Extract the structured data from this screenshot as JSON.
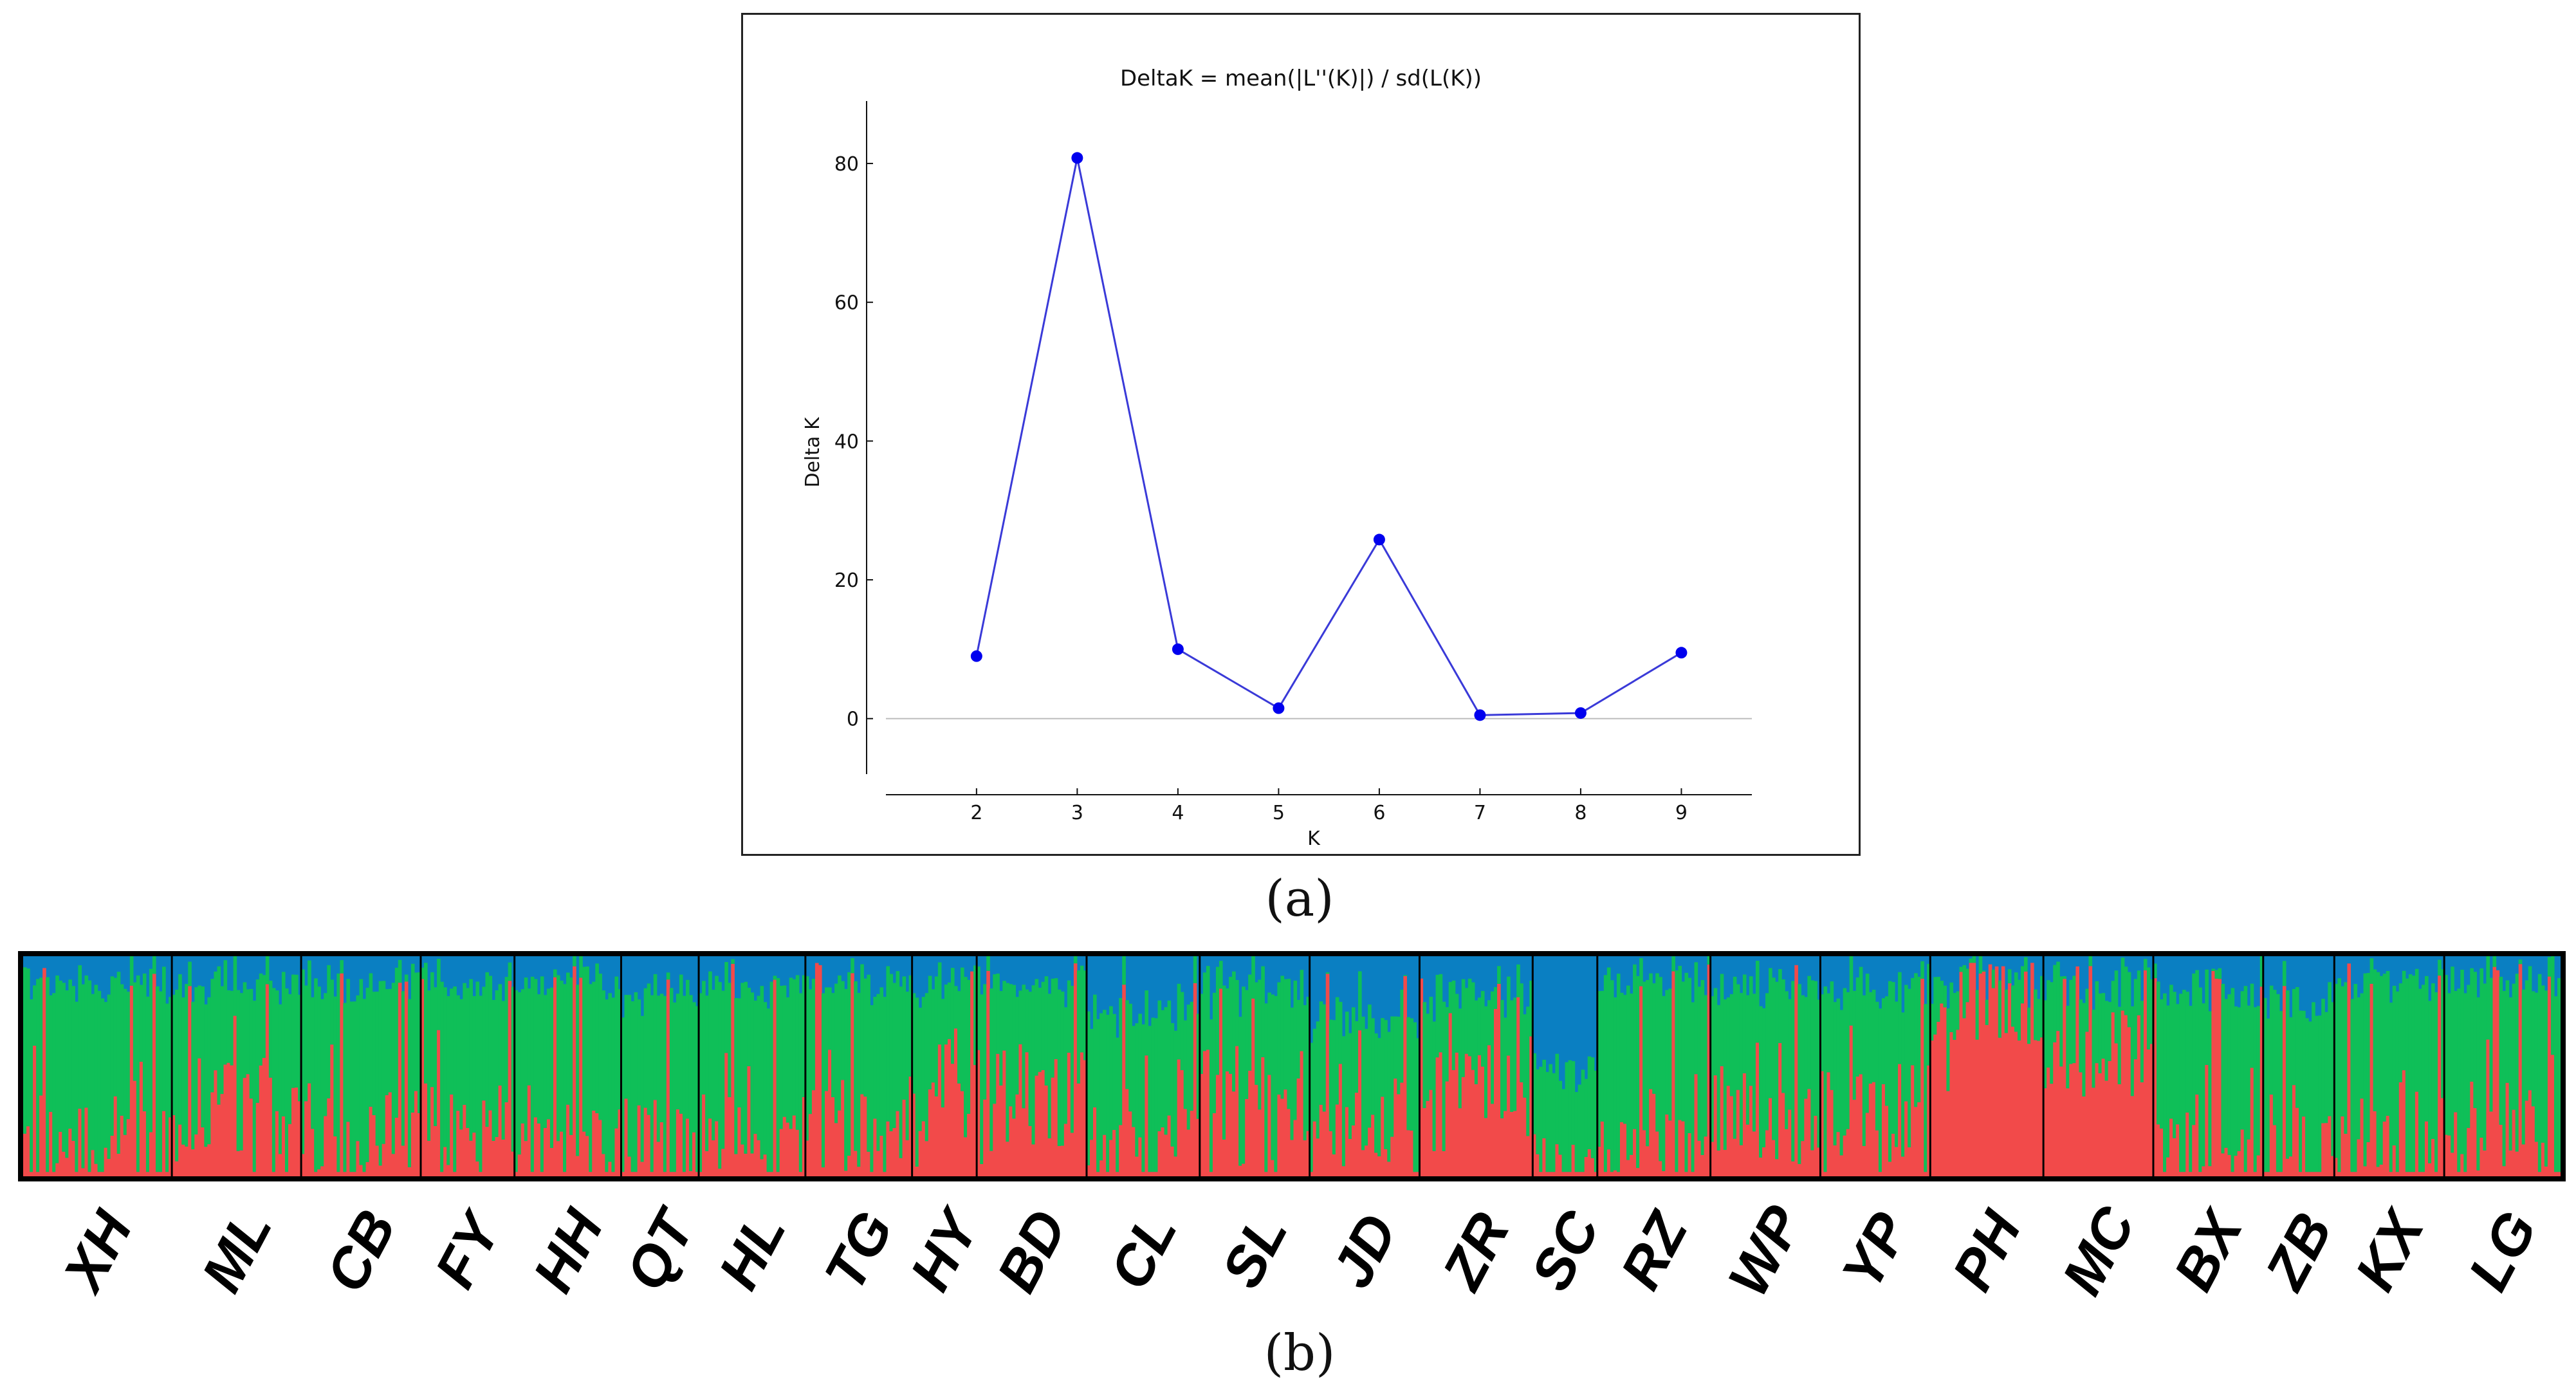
{
  "chart_data": [
    {
      "type": "line",
      "title": "DeltaK = mean(|L''(K)|) / sd(L(K))",
      "xlabel": "K",
      "ylabel": "Delta K",
      "x": [
        2,
        3,
        4,
        5,
        6,
        7,
        8,
        9
      ],
      "values": [
        9,
        80.8,
        10,
        1.5,
        25.8,
        0.5,
        0.8,
        9.5
      ],
      "xlim": [
        1.1,
        9.7
      ],
      "ylim": [
        -8,
        89
      ],
      "xticks": [
        "2",
        "3",
        "4",
        "5",
        "6",
        "7",
        "8",
        "9"
      ],
      "yticks": [
        "0",
        "20",
        "40",
        "60",
        "80"
      ],
      "line_color": "#3a3ad8",
      "marker_color": "#0000ee",
      "zero_line_color": "#bdbdbd",
      "panel_label": "(a)"
    },
    {
      "type": "bar",
      "subtype": "stacked-structure-admixture",
      "panel_label": "(b)",
      "populations": [
        "XH",
        "ML",
        "CB",
        "FY",
        "HH",
        "QT",
        "HL",
        "TG",
        "HY",
        "BD",
        "CL",
        "SL",
        "JD",
        "ZR",
        "SC",
        "RZ",
        "WP",
        "YP",
        "PH",
        "MC",
        "BX",
        "ZB",
        "KX",
        "LG"
      ],
      "cluster_colors": {
        "red": "#f24a4a",
        "green": "#0fbf58",
        "blue": "#0a7fc2"
      },
      "cluster_order": [
        "red",
        "green",
        "blue"
      ],
      "mean_proportions": [
        {
          "red": 0.15,
          "green": 0.72,
          "blue": 0.13
        },
        {
          "red": 0.32,
          "green": 0.56,
          "blue": 0.12
        },
        {
          "red": 0.2,
          "green": 0.68,
          "blue": 0.12
        },
        {
          "red": 0.22,
          "green": 0.66,
          "blue": 0.12
        },
        {
          "red": 0.14,
          "green": 0.74,
          "blue": 0.12
        },
        {
          "red": 0.16,
          "green": 0.66,
          "blue": 0.18
        },
        {
          "red": 0.15,
          "green": 0.7,
          "blue": 0.15
        },
        {
          "red": 0.25,
          "green": 0.63,
          "blue": 0.12
        },
        {
          "red": 0.4,
          "green": 0.48,
          "blue": 0.12
        },
        {
          "red": 0.36,
          "green": 0.5,
          "blue": 0.14
        },
        {
          "red": 0.12,
          "green": 0.6,
          "blue": 0.28
        },
        {
          "red": 0.38,
          "green": 0.48,
          "blue": 0.14
        },
        {
          "red": 0.22,
          "green": 0.5,
          "blue": 0.28
        },
        {
          "red": 0.45,
          "green": 0.38,
          "blue": 0.17
        },
        {
          "red": 0.05,
          "green": 0.42,
          "blue": 0.53
        },
        {
          "red": 0.15,
          "green": 0.73,
          "blue": 0.12
        },
        {
          "red": 0.25,
          "green": 0.6,
          "blue": 0.15
        },
        {
          "red": 0.3,
          "green": 0.56,
          "blue": 0.14
        },
        {
          "red": 0.8,
          "green": 0.12,
          "blue": 0.08
        },
        {
          "red": 0.58,
          "green": 0.3,
          "blue": 0.12
        },
        {
          "red": 0.1,
          "green": 0.72,
          "blue": 0.18
        },
        {
          "red": 0.1,
          "green": 0.68,
          "blue": 0.22
        },
        {
          "red": 0.06,
          "green": 0.8,
          "blue": 0.14
        },
        {
          "red": 0.22,
          "green": 0.68,
          "blue": 0.1
        }
      ]
    }
  ]
}
